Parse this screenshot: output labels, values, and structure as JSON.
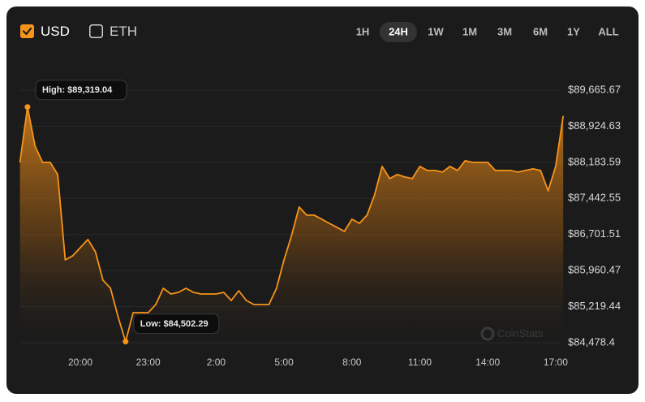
{
  "currency_toggles": [
    {
      "label": "USD",
      "checked": true
    },
    {
      "label": "ETH",
      "checked": false
    }
  ],
  "range_buttons": [
    "1H",
    "24H",
    "1W",
    "1M",
    "3M",
    "6M",
    "1Y",
    "ALL"
  ],
  "active_range": "24H",
  "watermark": "CoinStats",
  "chart_data": {
    "type": "area",
    "color": "#f7931a",
    "grid": true,
    "high_label": "High: $89,319.04",
    "low_label": "Low: $84,502.29",
    "categories": [
      null,
      null,
      null,
      null,
      null,
      null,
      null,
      null,
      "20:00",
      null,
      null,
      null,
      null,
      null,
      null,
      null,
      null,
      "23:00",
      null,
      null,
      null,
      null,
      null,
      null,
      null,
      null,
      "2:00",
      null,
      null,
      null,
      null,
      null,
      null,
      null,
      null,
      "5:00",
      null,
      null,
      null,
      null,
      null,
      null,
      null,
      null,
      "8:00",
      null,
      null,
      null,
      null,
      null,
      null,
      null,
      null,
      "11:00",
      null,
      null,
      null,
      null,
      null,
      null,
      null,
      null,
      "14:00",
      null,
      null,
      null,
      null,
      null,
      null,
      null,
      null,
      "17:00",
      null
    ],
    "values": [
      88183,
      89319.04,
      88517,
      88183,
      88183,
      87933,
      86180,
      86264,
      86431,
      86598,
      86347,
      85763,
      85596,
      85012,
      84502.29,
      85096,
      85096,
      85096,
      85262,
      85596,
      85479,
      85513,
      85596,
      85513,
      85479,
      85479,
      85479,
      85513,
      85346,
      85546,
      85346,
      85262,
      85262,
      85262,
      85596,
      86180,
      86681,
      87265,
      87098,
      87098,
      87015,
      86931,
      86848,
      86765,
      87015,
      86931,
      87098,
      87516,
      88100,
      87849,
      87933,
      87883,
      87849,
      88100,
      88016,
      88016,
      87983,
      88100,
      88016,
      88217,
      88183,
      88183,
      88183,
      88016,
      88016,
      88016,
      87983,
      88016,
      88050,
      88016,
      87599,
      88100,
      89135
    ],
    "ylim": [
      84478.4,
      89665.67
    ],
    "yticks": [
      {
        "value": 89665.67,
        "label": "$89,665.67"
      },
      {
        "value": 88924.63,
        "label": "$88,924.63"
      },
      {
        "value": 88183.59,
        "label": "$88,183.59"
      },
      {
        "value": 87442.55,
        "label": "$87,442.55"
      },
      {
        "value": 86701.51,
        "label": "$86,701.51"
      },
      {
        "value": 85960.47,
        "label": "$85,960.47"
      },
      {
        "value": 85219.44,
        "label": "$85,219.44"
      },
      {
        "value": 84478.4,
        "label": "$84,478.4"
      }
    ]
  }
}
